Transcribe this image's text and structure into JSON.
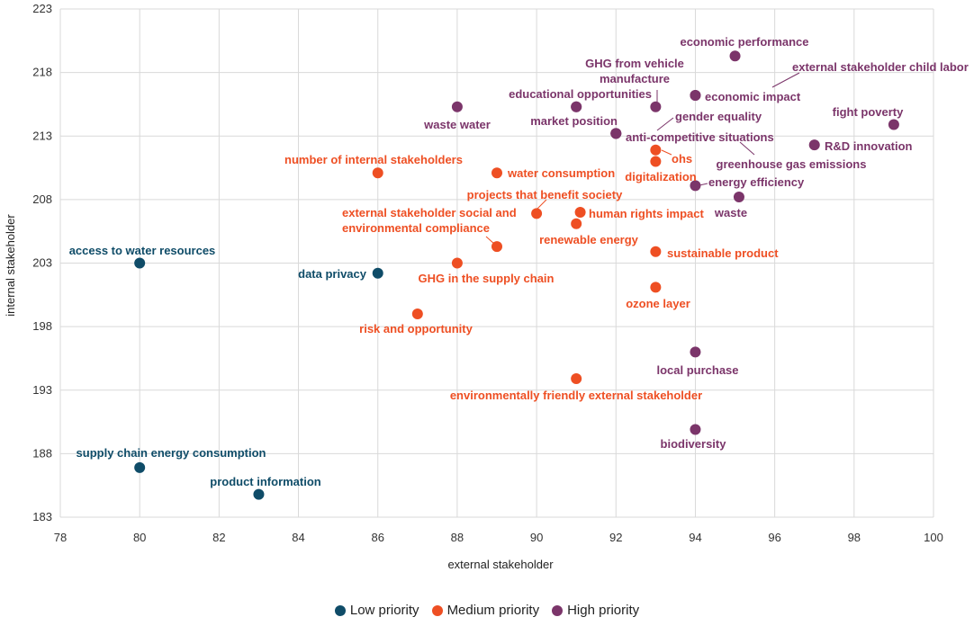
{
  "chart_data": {
    "type": "scatter",
    "xlabel": "external stakeholder",
    "ylabel": "internal stakeholder",
    "xlim": [
      78,
      100
    ],
    "ylim": [
      183,
      223
    ],
    "xticks": [
      78,
      80,
      82,
      84,
      86,
      88,
      90,
      92,
      94,
      96,
      98,
      100
    ],
    "yticks": [
      183,
      188,
      193,
      198,
      203,
      208,
      213,
      218,
      223
    ],
    "grid": true,
    "legend_position": "bottom",
    "series": [
      {
        "name": "Low priority",
        "color": "#0f4c68",
        "points": [
          {
            "label": "access to water resources",
            "x": 80,
            "y": 203
          },
          {
            "label": "data privacy",
            "x": 86,
            "y": 202.2
          },
          {
            "label": "supply chain energy consumption",
            "x": 80,
            "y": 186.9
          },
          {
            "label": "product information",
            "x": 83,
            "y": 184.8
          }
        ]
      },
      {
        "name": "Medium priority",
        "color": "#ee4f23",
        "points": [
          {
            "label": "number of internal stakeholders",
            "x": 86,
            "y": 210.1
          },
          {
            "label": "water consumption",
            "x": 89,
            "y": 210.1
          },
          {
            "label": "projects that benefit society",
            "x": 90,
            "y": 206.9
          },
          {
            "label": "human rights impact",
            "x": 91.1,
            "y": 207
          },
          {
            "label": "external stakeholder social and environmental compliance",
            "x": 89,
            "y": 204.3
          },
          {
            "label": "renewable energy",
            "x": 91,
            "y": 206.1
          },
          {
            "label": "GHG in the supply chain",
            "x": 88,
            "y": 203
          },
          {
            "label": "risk and opportunity",
            "x": 87,
            "y": 199
          },
          {
            "label": "ohs",
            "x": 93,
            "y": 211.9
          },
          {
            "label": "digitalization",
            "x": 93,
            "y": 211
          },
          {
            "label": "sustainable product",
            "x": 93,
            "y": 203.9
          },
          {
            "label": "ozone layer",
            "x": 93,
            "y": 201.1
          },
          {
            "label": "environmentally friendly external stakeholder",
            "x": 91,
            "y": 193.9
          }
        ]
      },
      {
        "name": "High priority",
        "color": "#7b356a",
        "points": [
          {
            "label": "economic performance",
            "x": 95,
            "y": 219.3
          },
          {
            "label": "economic impact",
            "x": 94,
            "y": 216.2
          },
          {
            "label": "external stakeholder child labor",
            "x": 94,
            "y": 216.2
          },
          {
            "label": "GHG from vehicle manufacture",
            "x": 93,
            "y": 215.3
          },
          {
            "label": "educational opportunities",
            "x": 91,
            "y": 215.3
          },
          {
            "label": "market position",
            "x": 91,
            "y": 215.3
          },
          {
            "label": "waste water",
            "x": 88,
            "y": 215.3
          },
          {
            "label": "gender equality",
            "x": 92,
            "y": 213.2
          },
          {
            "label": "anti-competitive situations",
            "x": 92,
            "y": 213.2
          },
          {
            "label": "greenhouse gas emissions",
            "x": 92,
            "y": 213.2
          },
          {
            "label": "fight poverty",
            "x": 99,
            "y": 213.9
          },
          {
            "label": "R&D innovation",
            "x": 97,
            "y": 212.3
          },
          {
            "label": "energy efficiency",
            "x": 94,
            "y": 209.1
          },
          {
            "label": "waste",
            "x": 95.1,
            "y": 208.2
          },
          {
            "label": "local purchase",
            "x": 94,
            "y": 196
          },
          {
            "label": "biodiversity",
            "x": 94,
            "y": 189.9
          }
        ]
      }
    ]
  }
}
